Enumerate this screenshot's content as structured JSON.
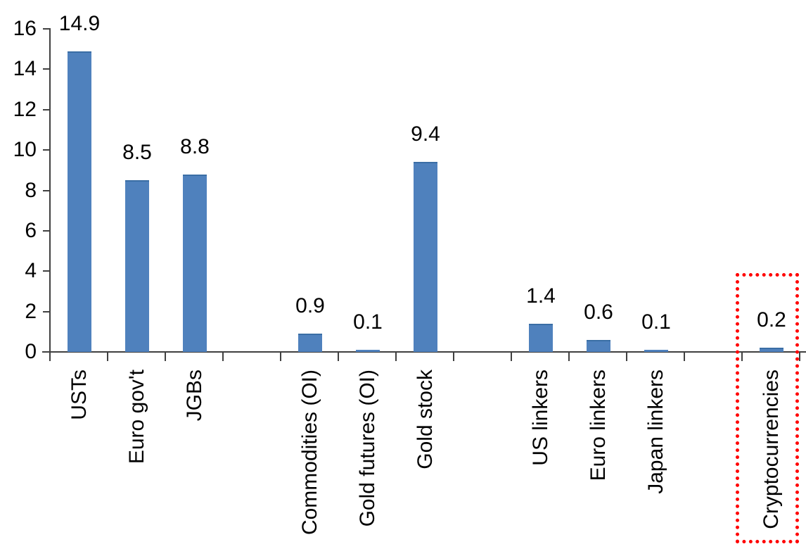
{
  "chart_data": {
    "type": "bar",
    "title": "",
    "xlabel": "",
    "ylabel": "",
    "categories": [
      "USTs",
      "Euro gov't",
      "JGBs",
      "",
      "Commodities (OI)",
      "Gold futures (OI)",
      "Gold stock",
      "",
      "US linkers",
      "Euro linkers",
      "Japan linkers",
      "",
      "Cryptocurrencies"
    ],
    "values": [
      14.9,
      8.5,
      8.8,
      null,
      0.9,
      0.1,
      9.4,
      null,
      1.4,
      0.6,
      0.1,
      null,
      0.2
    ],
    "data_labels": [
      "14.9",
      "8.5",
      "8.8",
      null,
      "0.9",
      "0.1",
      "9.4",
      null,
      "1.4",
      "0.6",
      "0.1",
      null,
      "0.2"
    ],
    "y_ticks": [
      0,
      2,
      4,
      6,
      8,
      10,
      12,
      14,
      16
    ],
    "ylim": [
      0,
      16
    ],
    "grid": false,
    "legend": null,
    "bar_color": "#4F81BD",
    "bar_edge_color": "#3A6EA5",
    "axis_color": "#404040",
    "highlight": {
      "category": "Cryptocurrencies",
      "style": "red-dotted-box",
      "color": "#FF0000"
    }
  }
}
